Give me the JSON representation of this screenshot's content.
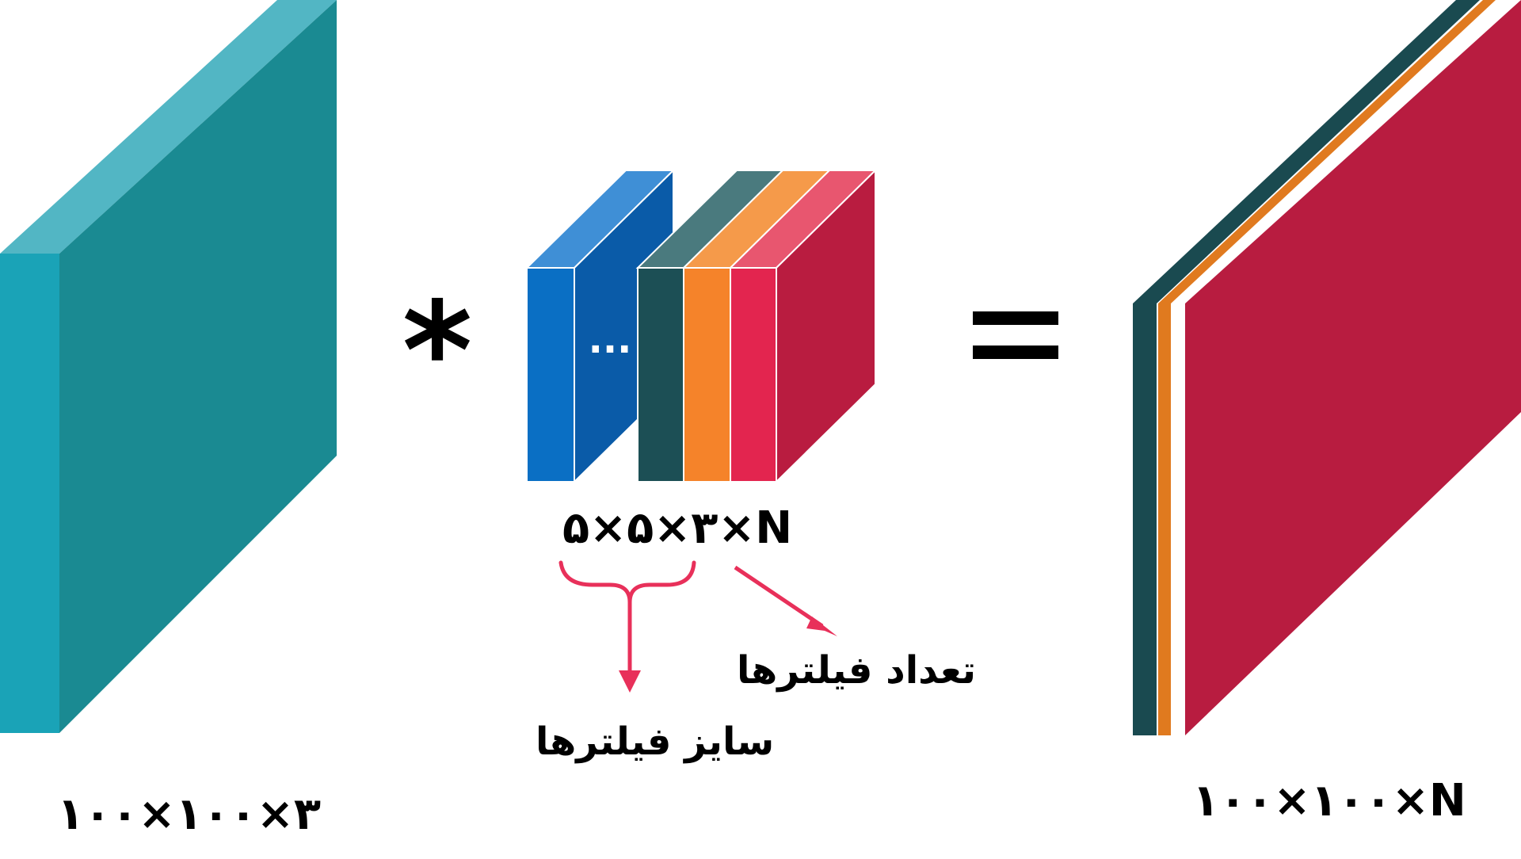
{
  "input": {
    "dims_label": "۱۰۰×۱۰۰×۳",
    "color_front": "#1a8a92",
    "color_side": "#1aa3b7",
    "color_top": "#52b6c4"
  },
  "operators": {
    "convolve": "*",
    "equals": "="
  },
  "filters": {
    "dims_label": "۵×۵×۳×N",
    "ellipsis": "...",
    "size_caption": "سایز فیلترها",
    "count_caption": "تعداد فیلترها",
    "colors": [
      "#0a6fc4",
      "#1c4f55",
      "#f5832a",
      "#e3254f"
    ],
    "blue_side": "#0a5ba8",
    "blue_top": "#3f8fd6",
    "red_side": "#b91c40",
    "arrow_color": "#e8305a"
  },
  "output": {
    "dims_label": "۱۰۰×۱۰۰×N",
    "layer_colors": [
      "#1a4a50",
      "#e07a1f",
      "#b81c40"
    ]
  }
}
